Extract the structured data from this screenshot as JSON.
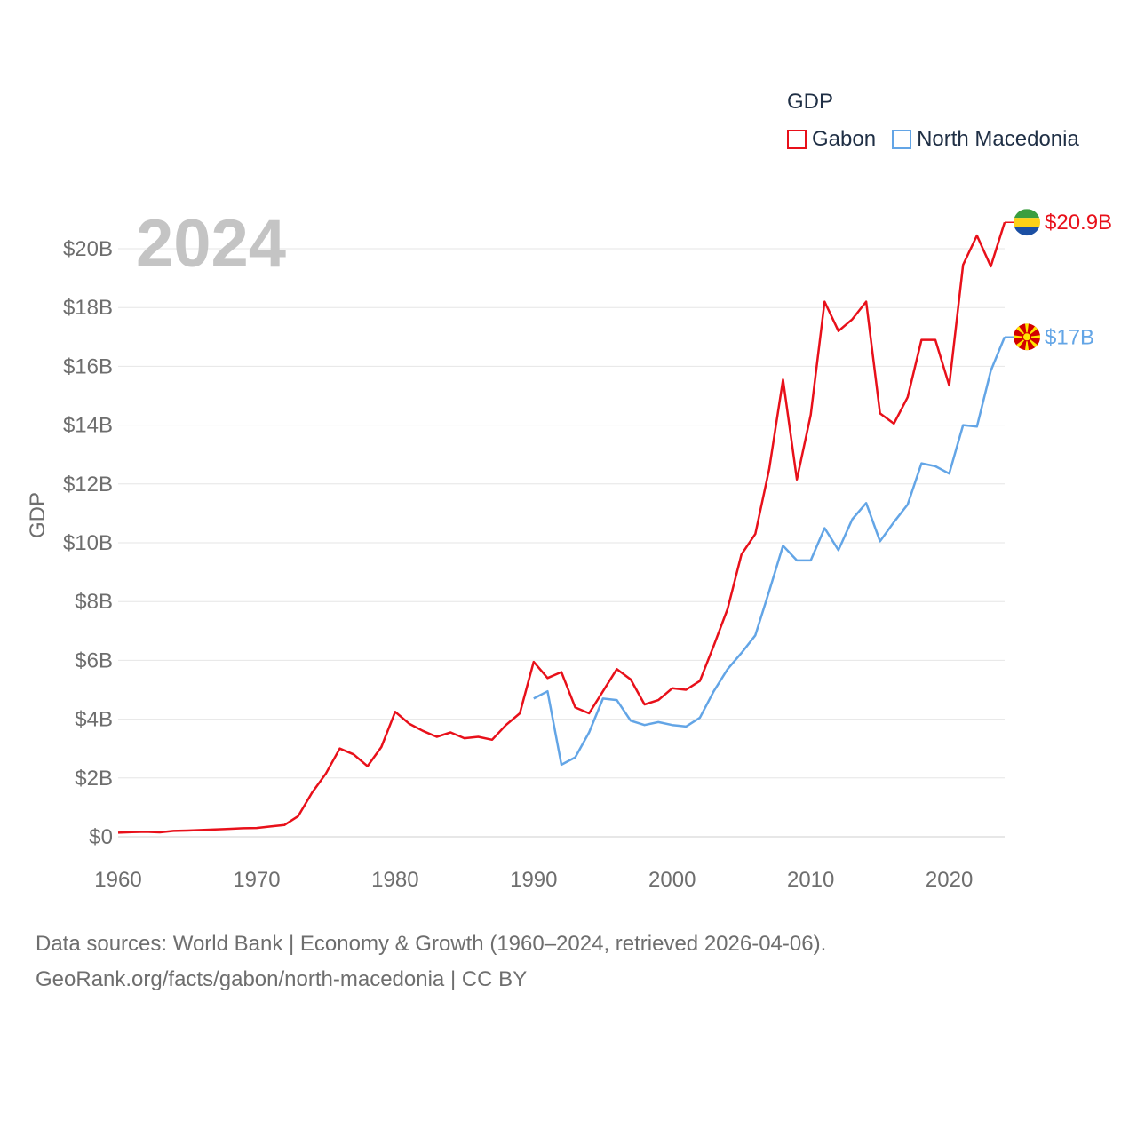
{
  "legend": {
    "title": "GDP",
    "items": [
      {
        "name": "Gabon",
        "color": "#e8101a"
      },
      {
        "name": "North Macedonia",
        "color": "#63a5e6"
      }
    ]
  },
  "year_label": "2024",
  "end_labels": {
    "gabon": "$20.9B",
    "north_macedonia": "$17B"
  },
  "footer": {
    "line1": "Data sources: World Bank | Economy & Growth (1960–2024, retrieved 2026-04-06).",
    "line2": "GeoRank.org/facts/gabon/north-macedonia | CC BY"
  },
  "chart_data": {
    "type": "line",
    "title": "GDP",
    "ylabel": "GDP",
    "xlabel": "",
    "xlim": [
      1960,
      2024
    ],
    "ylim": [
      0,
      20
    ],
    "x_ticks": [
      1960,
      1970,
      1980,
      1990,
      2000,
      2010,
      2020
    ],
    "y_ticks": [
      0,
      2,
      4,
      6,
      8,
      10,
      12,
      14,
      16,
      18,
      20
    ],
    "y_tick_labels": [
      "$0",
      "$2B",
      "$4B",
      "$6B",
      "$8B",
      "$10B",
      "$12B",
      "$14B",
      "$16B",
      "$18B",
      "$20B"
    ],
    "grid": true,
    "series": [
      {
        "name": "Gabon",
        "color": "#e8101a",
        "end_label": "$20.9B",
        "x": [
          1960,
          1961,
          1962,
          1963,
          1964,
          1965,
          1966,
          1967,
          1968,
          1969,
          1970,
          1971,
          1972,
          1973,
          1974,
          1975,
          1976,
          1977,
          1978,
          1979,
          1980,
          1981,
          1982,
          1983,
          1984,
          1985,
          1986,
          1987,
          1988,
          1989,
          1990,
          1991,
          1992,
          1993,
          1994,
          1995,
          1996,
          1997,
          1998,
          1999,
          2000,
          2001,
          2002,
          2003,
          2004,
          2005,
          2006,
          2007,
          2008,
          2009,
          2010,
          2011,
          2012,
          2013,
          2014,
          2015,
          2016,
          2017,
          2018,
          2019,
          2020,
          2021,
          2022,
          2023,
          2024
        ],
        "values": [
          0.14,
          0.16,
          0.17,
          0.15,
          0.2,
          0.21,
          0.23,
          0.25,
          0.27,
          0.29,
          0.3,
          0.35,
          0.4,
          0.7,
          1.5,
          2.15,
          3.0,
          2.8,
          2.4,
          3.05,
          4.25,
          3.85,
          3.6,
          3.4,
          3.55,
          3.35,
          3.4,
          3.3,
          3.8,
          4.2,
          5.95,
          5.4,
          5.6,
          4.4,
          4.2,
          4.95,
          5.7,
          5.35,
          4.5,
          4.65,
          5.05,
          5.0,
          5.3,
          6.5,
          7.75,
          9.6,
          10.3,
          12.5,
          15.55,
          12.15,
          14.35,
          18.2,
          17.2,
          17.6,
          18.2,
          14.4,
          14.05,
          14.95,
          16.9,
          16.9,
          15.35,
          19.45,
          20.45,
          19.4,
          20.9
        ]
      },
      {
        "name": "North Macedonia",
        "color": "#63a5e6",
        "end_label": "$17B",
        "x": [
          1990,
          1991,
          1992,
          1993,
          1994,
          1995,
          1996,
          1997,
          1998,
          1999,
          2000,
          2001,
          2002,
          2003,
          2004,
          2005,
          2006,
          2007,
          2008,
          2009,
          2010,
          2011,
          2012,
          2013,
          2014,
          2015,
          2016,
          2017,
          2018,
          2019,
          2020,
          2021,
          2022,
          2023,
          2024
        ],
        "values": [
          4.7,
          4.95,
          2.45,
          2.7,
          3.55,
          4.7,
          4.65,
          3.95,
          3.8,
          3.9,
          3.8,
          3.75,
          4.05,
          4.95,
          5.7,
          6.25,
          6.85,
          8.35,
          9.9,
          9.4,
          9.4,
          10.5,
          9.75,
          10.8,
          11.35,
          10.05,
          10.7,
          11.3,
          12.7,
          12.6,
          12.35,
          14.0,
          13.95,
          15.85,
          17.0
        ]
      }
    ]
  }
}
